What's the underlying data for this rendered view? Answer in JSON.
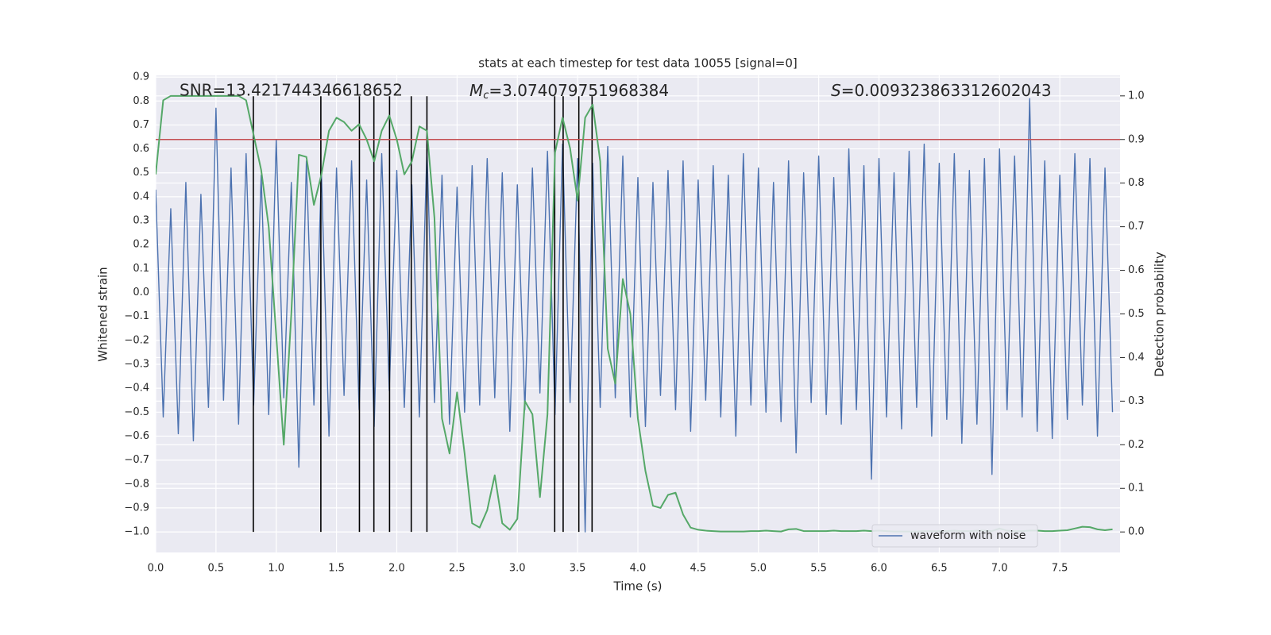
{
  "chart_data": {
    "type": "line",
    "title": "stats at each timestep for test data 10055 [signal=0]",
    "xlabel": "Time (s)",
    "ylabel": "Whitened strain",
    "y2label": "Detection probability",
    "annotations": [
      {
        "text": "SNR=13.421744346618652"
      },
      {
        "symbol": "M",
        "subscript": "c",
        "text": "=3.074079751968384"
      },
      {
        "symbol": "S",
        "text": "=0.009323863312602043"
      }
    ],
    "x": [
      0,
      0.0625,
      0.125,
      0.1875,
      0.25,
      0.3125,
      0.375,
      0.4375,
      0.5,
      0.5625,
      0.625,
      0.6875,
      0.75,
      0.8125,
      0.875,
      0.9375,
      1,
      1.0625,
      1.125,
      1.1875,
      1.25,
      1.3125,
      1.375,
      1.4375,
      1.5,
      1.5625,
      1.625,
      1.6875,
      1.75,
      1.8125,
      1.875,
      1.9375,
      2,
      2.0625,
      2.125,
      2.1875,
      2.25,
      2.3125,
      2.375,
      2.4375,
      2.5,
      2.5625,
      2.625,
      2.6875,
      2.75,
      2.8125,
      2.875,
      2.9375,
      3,
      3.0625,
      3.125,
      3.1875,
      3.25,
      3.3125,
      3.375,
      3.4375,
      3.5,
      3.5625,
      3.625,
      3.6875,
      3.75,
      3.8125,
      3.875,
      3.9375,
      4,
      4.0625,
      4.125,
      4.1875,
      4.25,
      4.3125,
      4.375,
      4.4375,
      4.5,
      4.5625,
      4.625,
      4.6875,
      4.75,
      4.8125,
      4.875,
      4.9375,
      5,
      5.0625,
      5.125,
      5.1875,
      5.25,
      5.3125,
      5.375,
      5.4375,
      5.5,
      5.5625,
      5.625,
      5.6875,
      5.75,
      5.8125,
      5.875,
      5.9375,
      6,
      6.0625,
      6.125,
      6.1875,
      6.25,
      6.3125,
      6.375,
      6.4375,
      6.5,
      6.5625,
      6.625,
      6.6875,
      6.75,
      6.8125,
      6.875,
      6.9375,
      7,
      7.0625,
      7.125,
      7.1875,
      7.25,
      7.3125,
      7.375,
      7.4375,
      7.5,
      7.5625,
      7.625,
      7.6875,
      7.75,
      7.8125,
      7.875,
      7.9375
    ],
    "series": [
      {
        "name": "waveform with noise",
        "color": "#4c72b0",
        "axis": "y",
        "values": [
          0.43,
          -0.52,
          0.35,
          -0.59,
          0.46,
          -0.62,
          0.41,
          -0.48,
          0.77,
          -0.45,
          0.52,
          -0.55,
          0.58,
          -0.47,
          0.49,
          -0.51,
          0.64,
          -0.44,
          0.46,
          -0.73,
          0.55,
          -0.47,
          0.5,
          -0.6,
          0.52,
          -0.43,
          0.55,
          -0.49,
          0.47,
          -0.56,
          0.58,
          -0.41,
          0.51,
          -0.48,
          0.45,
          -0.52,
          0.6,
          -0.46,
          0.49,
          -0.55,
          0.44,
          -0.5,
          0.53,
          -0.47,
          0.56,
          -0.44,
          0.5,
          -0.58,
          0.45,
          -0.49,
          0.52,
          -0.42,
          0.59,
          -0.51,
          0.62,
          -0.46,
          0.56,
          -1.0,
          0.54,
          -0.48,
          0.61,
          -0.44,
          0.57,
          -0.52,
          0.48,
          -0.56,
          0.46,
          -0.43,
          0.51,
          -0.49,
          0.55,
          -0.58,
          0.47,
          -0.45,
          0.53,
          -0.52,
          0.49,
          -0.6,
          0.58,
          -0.47,
          0.52,
          -0.5,
          0.46,
          -0.54,
          0.55,
          -0.67,
          0.5,
          -0.46,
          0.57,
          -0.51,
          0.48,
          -0.55,
          0.6,
          -0.49,
          0.53,
          -0.78,
          0.56,
          -0.52,
          0.5,
          -0.57,
          0.59,
          -0.48,
          0.62,
          -0.6,
          0.54,
          -0.53,
          0.58,
          -0.63,
          0.51,
          -0.55,
          0.56,
          -0.76,
          0.6,
          -0.49,
          0.57,
          -0.52,
          0.81,
          -0.58,
          0.55,
          -0.61,
          0.49,
          -0.53,
          0.58,
          -0.47,
          0.56,
          -0.6,
          0.52,
          -0.5
        ]
      },
      {
        "color": "#55a868",
        "axis": "y2",
        "values": [
          0.82,
          0.99,
          1.0,
          1.0,
          1.0,
          1.0,
          1.0,
          1.0,
          1.0,
          1.0,
          1.0,
          1.0,
          0.99,
          0.91,
          0.83,
          0.7,
          0.45,
          0.2,
          0.5,
          0.865,
          0.86,
          0.75,
          0.82,
          0.92,
          0.95,
          0.94,
          0.92,
          0.935,
          0.9,
          0.85,
          0.92,
          0.955,
          0.9,
          0.82,
          0.85,
          0.93,
          0.92,
          0.72,
          0.26,
          0.18,
          0.32,
          0.18,
          0.02,
          0.01,
          0.05,
          0.13,
          0.02,
          0.005,
          0.03,
          0.3,
          0.27,
          0.08,
          0.27,
          0.87,
          0.95,
          0.88,
          0.76,
          0.95,
          0.98,
          0.85,
          0.42,
          0.34,
          0.58,
          0.5,
          0.26,
          0.14,
          0.06,
          0.055,
          0.085,
          0.09,
          0.04,
          0.01,
          0.005,
          0.003,
          0.002,
          0.001,
          0.001,
          0.001,
          0.001,
          0.002,
          0.002,
          0.003,
          0.002,
          0.001,
          0.006,
          0.007,
          0.002,
          0.002,
          0.002,
          0.002,
          0.003,
          0.002,
          0.002,
          0.002,
          0.003,
          0.002,
          0.003,
          0.002,
          0.001,
          0.001,
          0.001,
          0.001,
          0.002,
          0.002,
          0.002,
          0.002,
          0.003,
          0.002,
          0.002,
          0.003,
          0.003,
          0.002,
          0.008,
          0.003,
          0.002,
          0.002,
          0.003,
          0.003,
          0.002,
          0.002,
          0.003,
          0.004,
          0.008,
          0.012,
          0.011,
          0.006,
          0.004,
          0.006
        ]
      }
    ],
    "vlines": [
      0.81,
      1.37,
      1.69,
      1.81,
      1.94,
      2.12,
      2.25,
      3.31,
      3.38,
      3.51,
      3.62
    ],
    "vline_range": [
      -1.0,
      0.82
    ],
    "vline_color": "#000000",
    "hline": {
      "value": 0.9,
      "axis": "y2",
      "color": "#c44e52"
    },
    "xlim": [
      0,
      8.0
    ],
    "ylim": [
      -1.086,
      0.907
    ],
    "y2lim": [
      -0.047,
      1.047
    ],
    "xticks": [
      {
        "value": 0,
        "label": "0.0"
      },
      0.5,
      {
        "value": 1,
        "label": "1.0"
      },
      1.5,
      {
        "value": 2,
        "label": "2.0"
      },
      2.5,
      {
        "value": 3,
        "label": "3.0"
      },
      3.5,
      {
        "value": 4,
        "label": "4.0"
      },
      4.5,
      {
        "value": 5,
        "label": "5.0"
      },
      5.5,
      {
        "value": 6,
        "label": "6.0"
      },
      6.5,
      {
        "value": 7,
        "label": "7.0"
      },
      7.5
    ],
    "yticks": [
      {
        "value": -1.0,
        "label": "−1.0"
      },
      {
        "value": -0.9,
        "label": "−0.9"
      },
      {
        "value": -0.8,
        "label": "−0.8"
      },
      {
        "value": -0.7,
        "label": "−0.7"
      },
      {
        "value": -0.6,
        "label": "−0.6"
      },
      {
        "value": -0.5,
        "label": "−0.5"
      },
      {
        "value": -0.4,
        "label": "−0.4"
      },
      {
        "value": -0.3,
        "label": "−0.3"
      },
      {
        "value": -0.2,
        "label": "−0.2"
      },
      {
        "value": -0.1,
        "label": "−0.1"
      },
      {
        "value": 0,
        "label": "0.0"
      },
      0.1,
      0.2,
      0.3,
      0.4,
      0.5,
      0.6,
      0.7,
      0.8,
      0.9
    ],
    "y2ticks": [
      {
        "value": 0,
        "label": "0.0"
      },
      0.1,
      0.2,
      0.3,
      0.4,
      0.5,
      0.6,
      0.7,
      0.8,
      0.9,
      {
        "value": 1,
        "label": "1.0"
      }
    ],
    "grid": true,
    "legend": "lower right"
  }
}
